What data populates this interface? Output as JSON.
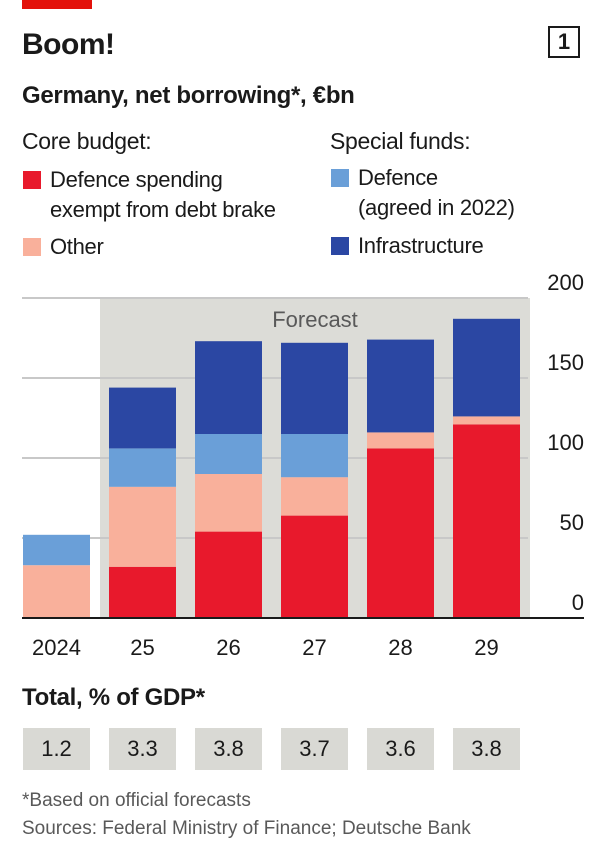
{
  "header": {
    "title": "Boom!",
    "badge": "1",
    "subtitle": "Germany, net borrowing*, €bn"
  },
  "legend": {
    "core_heading": "Core budget:",
    "special_heading": "Special funds:",
    "items": {
      "defence_exempt": {
        "line1": "Defence spending",
        "line2": "exempt from debt brake"
      },
      "other": {
        "label": "Other"
      },
      "defence_fund": {
        "line1": "Defence",
        "line2": "(agreed in 2022)"
      },
      "infrastructure": {
        "label": "Infrastructure"
      }
    }
  },
  "colors": {
    "defence_exempt": "#e8192c",
    "other": "#f9b09b",
    "defence_fund": "#6a9fd8",
    "infrastructure": "#2b47a3",
    "forecast_bg": "#dcdcd7",
    "grid": "#c8c8c8",
    "axis": "#1a1a1a",
    "text": "#1a1a1a",
    "accent": "#e3120b"
  },
  "chart_data": {
    "type": "bar",
    "stacked": true,
    "categories": [
      "2024",
      "25",
      "26",
      "27",
      "28",
      "29"
    ],
    "series": [
      {
        "key": "defence_exempt",
        "name": "Defence spending exempt from debt brake",
        "values": [
          0,
          32,
          54,
          64,
          106,
          121
        ]
      },
      {
        "key": "other",
        "name": "Other",
        "values": [
          33,
          50,
          36,
          24,
          10,
          5
        ]
      },
      {
        "key": "defence_fund",
        "name": "Defence (agreed in 2022)",
        "values": [
          19,
          24,
          25,
          27,
          0,
          0
        ]
      },
      {
        "key": "infrastructure",
        "name": "Infrastructure",
        "values": [
          0,
          38,
          58,
          57,
          58,
          61
        ]
      }
    ],
    "ylim": [
      0,
      200
    ],
    "yticks": [
      0,
      50,
      100,
      150,
      200
    ],
    "ytick_labels": [
      "0",
      "50",
      "100",
      "150",
      "200"
    ],
    "y_axis_side": "right",
    "forecast_label": "Forecast",
    "forecast_from_index": 1,
    "grid": true
  },
  "gdp": {
    "title": "Total, % of GDP*",
    "values": [
      "1.2",
      "3.3",
      "3.8",
      "3.7",
      "3.6",
      "3.8"
    ]
  },
  "footnotes": {
    "note": "*Based on official forecasts",
    "sources": "Sources: Federal Ministry of Finance; Deutsche Bank"
  }
}
